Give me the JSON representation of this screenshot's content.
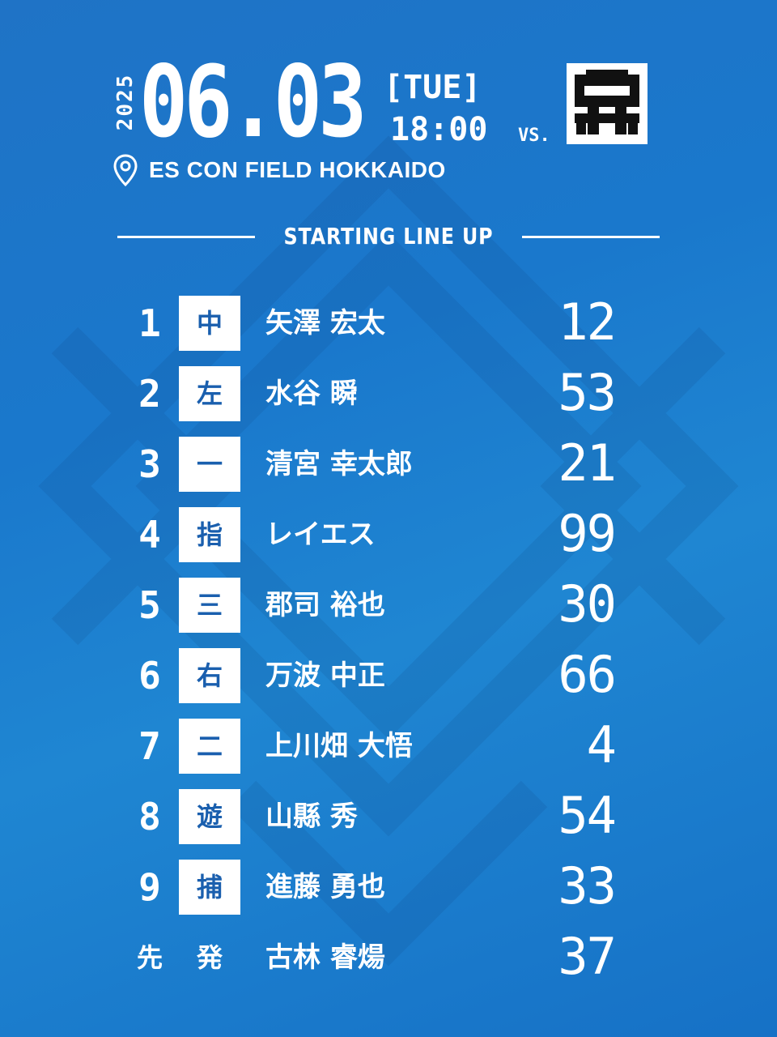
{
  "header": {
    "year": "2025",
    "date": "06.03",
    "day_of_week": "[TUE]",
    "time": "18:00",
    "vs": "VS.",
    "opponent_logo_icon": "tigers-logo-icon",
    "venue_icon": "location-pin-icon",
    "venue": "ES CON FIELD HOKKAIDO"
  },
  "section_title": "STARTING LINE UP",
  "lineup": [
    {
      "order": "1",
      "position": "中",
      "name": "矢澤 宏太",
      "number": "12"
    },
    {
      "order": "2",
      "position": "左",
      "name": "水谷 瞬",
      "number": "53"
    },
    {
      "order": "3",
      "position": "一",
      "name": "清宮 幸太郎",
      "number": "21"
    },
    {
      "order": "4",
      "position": "指",
      "name": "レイエス",
      "number": "99"
    },
    {
      "order": "5",
      "position": "三",
      "name": "郡司 裕也",
      "number": "30"
    },
    {
      "order": "6",
      "position": "右",
      "name": "万波 中正",
      "number": "66"
    },
    {
      "order": "7",
      "position": "二",
      "name": "上川畑 大悟",
      "number": "4"
    },
    {
      "order": "8",
      "position": "遊",
      "name": "山縣 秀",
      "number": "54"
    },
    {
      "order": "9",
      "position": "捕",
      "name": "進藤 勇也",
      "number": "33"
    }
  ],
  "starter": {
    "label_a": "先",
    "label_b": "発",
    "name": "古林 睿煬",
    "number": "37"
  },
  "colors": {
    "background": "#1a78cc",
    "accent": "#ffffff",
    "position_text": "#1a5fae"
  }
}
